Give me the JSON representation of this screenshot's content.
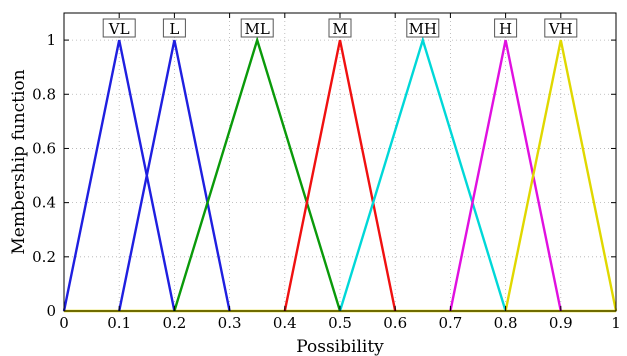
{
  "chart_data": {
    "type": "line",
    "xlabel": "Possibility",
    "ylabel": "Membership function",
    "xlim": [
      0,
      1
    ],
    "ylim": [
      0,
      1.1
    ],
    "x_ticks": [
      0,
      0.1,
      0.2,
      0.3,
      0.4,
      0.5,
      0.6,
      0.7,
      0.8,
      0.9,
      1
    ],
    "x_tick_labels": [
      "0",
      "0.1",
      "0.2",
      "0.3",
      "0.4",
      "0.5",
      "0.6",
      "0.7",
      "0.8",
      "0.9",
      "1"
    ],
    "y_ticks": [
      0,
      0.2,
      0.4,
      0.6,
      0.8,
      1
    ],
    "y_tick_labels": [
      "0",
      "0.2",
      "0.4",
      "0.6",
      "0.8",
      "1"
    ],
    "grid": true,
    "series": [
      {
        "name": "VL",
        "color": "#1f1fe0",
        "x": [
          0,
          0.1,
          0.2
        ],
        "y": [
          0,
          1,
          0
        ]
      },
      {
        "name": "L",
        "color": "#1f1fe0",
        "x": [
          0.1,
          0.2,
          0.3
        ],
        "y": [
          0,
          1,
          0
        ]
      },
      {
        "name": "ML",
        "color": "#0a9a0a",
        "x": [
          0.2,
          0.35,
          0.5
        ],
        "y": [
          0,
          1,
          0
        ]
      },
      {
        "name": "M",
        "color": "#f01010",
        "x": [
          0.4,
          0.5,
          0.6
        ],
        "y": [
          0,
          1,
          0
        ]
      },
      {
        "name": "MH",
        "color": "#00d8d8",
        "x": [
          0.5,
          0.65,
          0.8
        ],
        "y": [
          0,
          1,
          0
        ]
      },
      {
        "name": "H",
        "color": "#e010e0",
        "x": [
          0.7,
          0.8,
          0.9
        ],
        "y": [
          0,
          1,
          0
        ]
      },
      {
        "name": "VH",
        "color": "#e0d800",
        "x": [
          0.8,
          0.9,
          1.0
        ],
        "y": [
          0,
          1,
          0
        ]
      }
    ],
    "baseline_color": "#e0d800"
  }
}
